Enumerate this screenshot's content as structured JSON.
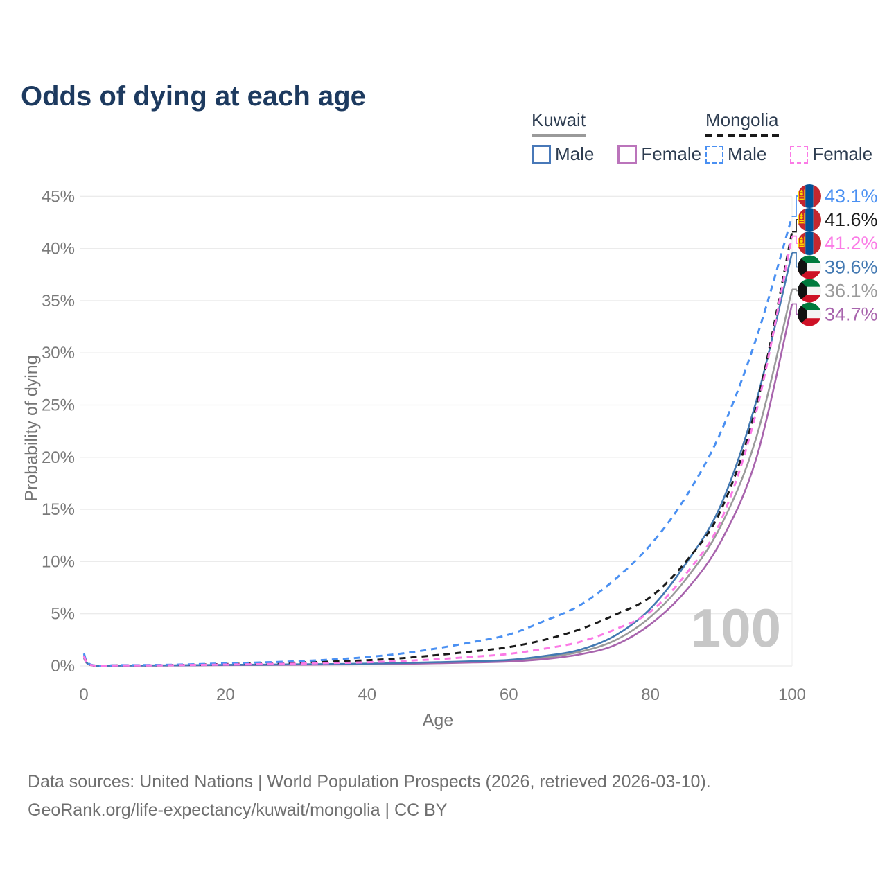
{
  "title": "Odds of dying at each age",
  "legend": {
    "groups": [
      {
        "name": "Kuwait",
        "style": "solid",
        "underline_color": "#9a9a9a",
        "items": [
          {
            "label": "Male",
            "color": "#4878b8"
          },
          {
            "label": "Female",
            "color": "#bb74bb"
          }
        ]
      },
      {
        "name": "Mongolia",
        "style": "dashed",
        "underline_color": "#1a1a1a",
        "items": [
          {
            "label": "Male",
            "color": "#4a90f2"
          },
          {
            "label": "Female",
            "color": "#fb7ae6"
          }
        ]
      }
    ]
  },
  "chart_data": {
    "type": "line",
    "title": "Odds of dying at each age",
    "xlabel": "Age",
    "ylabel": "Probability of dying",
    "xlim": [
      0,
      100
    ],
    "ylim": [
      0,
      45
    ],
    "xticks": [
      0,
      20,
      40,
      60,
      80,
      100
    ],
    "yticks": [
      0,
      5,
      10,
      15,
      20,
      25,
      30,
      35,
      40,
      45
    ],
    "ytick_suffix": "%",
    "grid": true,
    "legend_position": "top-right",
    "watermark": "100",
    "x": [
      0,
      1,
      5,
      10,
      15,
      20,
      25,
      30,
      35,
      40,
      45,
      50,
      55,
      60,
      65,
      70,
      75,
      80,
      85,
      90,
      95,
      100
    ],
    "series": [
      {
        "key": "kuwait-total",
        "name": "Kuwait (both sexes)",
        "country": "Kuwait",
        "sex": "Both",
        "style": "solid",
        "color": "#9a9a9a",
        "end_label": "36.1%",
        "end_value": 36.1,
        "values": [
          0.8,
          0.07,
          0.04,
          0.04,
          0.06,
          0.09,
          0.11,
          0.13,
          0.16,
          0.19,
          0.24,
          0.31,
          0.39,
          0.5,
          0.8,
          1.35,
          2.45,
          4.7,
          8.3,
          13.5,
          22.0,
          36.1
        ]
      },
      {
        "key": "kuwait-female",
        "name": "Kuwait Female",
        "country": "Kuwait",
        "sex": "Female",
        "style": "solid",
        "color": "#a864ad",
        "end_label": "34.7%",
        "end_value": 34.7,
        "values": [
          0.75,
          0.07,
          0.03,
          0.04,
          0.05,
          0.08,
          0.09,
          0.11,
          0.13,
          0.16,
          0.2,
          0.26,
          0.33,
          0.42,
          0.65,
          1.1,
          2.0,
          4.0,
          7.2,
          12.0,
          20.0,
          34.7
        ]
      },
      {
        "key": "kuwait-male",
        "name": "Kuwait Male",
        "country": "Kuwait",
        "sex": "Male",
        "style": "solid",
        "color": "#4379b2",
        "end_label": "39.6%",
        "end_value": 39.6,
        "values": [
          0.85,
          0.08,
          0.04,
          0.05,
          0.07,
          0.1,
          0.12,
          0.15,
          0.18,
          0.22,
          0.28,
          0.36,
          0.45,
          0.58,
          0.95,
          1.55,
          2.9,
          5.5,
          9.8,
          15.5,
          25.5,
          39.6
        ]
      },
      {
        "key": "mongolia-total",
        "name": "Mongolia (both sexes)",
        "country": "Mongolia",
        "sex": "Both",
        "style": "dashed",
        "color": "#1a1a1a",
        "end_label": "41.6%",
        "end_value": 41.6,
        "values": [
          1.05,
          0.1,
          0.06,
          0.07,
          0.11,
          0.18,
          0.24,
          0.32,
          0.42,
          0.55,
          0.75,
          1.05,
          1.4,
          1.8,
          2.5,
          3.5,
          4.9,
          6.6,
          10.0,
          15.0,
          25.0,
          41.6
        ]
      },
      {
        "key": "mongolia-male",
        "name": "Mongolia Male",
        "country": "Mongolia",
        "sex": "Male",
        "style": "dashed",
        "color": "#4a90f2",
        "end_label": "43.1%",
        "end_value": 43.1,
        "values": [
          1.2,
          0.12,
          0.07,
          0.09,
          0.15,
          0.25,
          0.33,
          0.45,
          0.62,
          0.85,
          1.2,
          1.7,
          2.3,
          3.0,
          4.3,
          5.8,
          8.3,
          11.6,
          16.2,
          22.5,
          31.5,
          43.1
        ]
      },
      {
        "key": "mongolia-female",
        "name": "Mongolia Female",
        "country": "Mongolia",
        "sex": "Female",
        "style": "dashed",
        "color": "#fb7ae6",
        "end_label": "41.2%",
        "end_value": 41.2,
        "values": [
          0.95,
          0.09,
          0.05,
          0.06,
          0.09,
          0.13,
          0.17,
          0.22,
          0.28,
          0.35,
          0.48,
          0.65,
          0.88,
          1.15,
          1.65,
          2.3,
          3.5,
          5.2,
          8.8,
          14.0,
          24.5,
          41.2
        ]
      }
    ]
  },
  "flags": {
    "kuwait": {
      "green": "#007a3d",
      "white": "#f4f4f4",
      "red": "#ce1126",
      "black": "#111111"
    },
    "mongolia": {
      "red": "#c4272f",
      "blue": "#015197",
      "yellow": "#ffd900"
    }
  },
  "axis_text_color": "#7a7a7a",
  "grid_color": "#ebebeb",
  "footer": {
    "line1": "Data sources: United Nations | World Population Prospects (2026, retrieved 2026-03-10).",
    "line2": "GeoRank.org/life-expectancy/kuwait/mongolia | CC BY"
  }
}
